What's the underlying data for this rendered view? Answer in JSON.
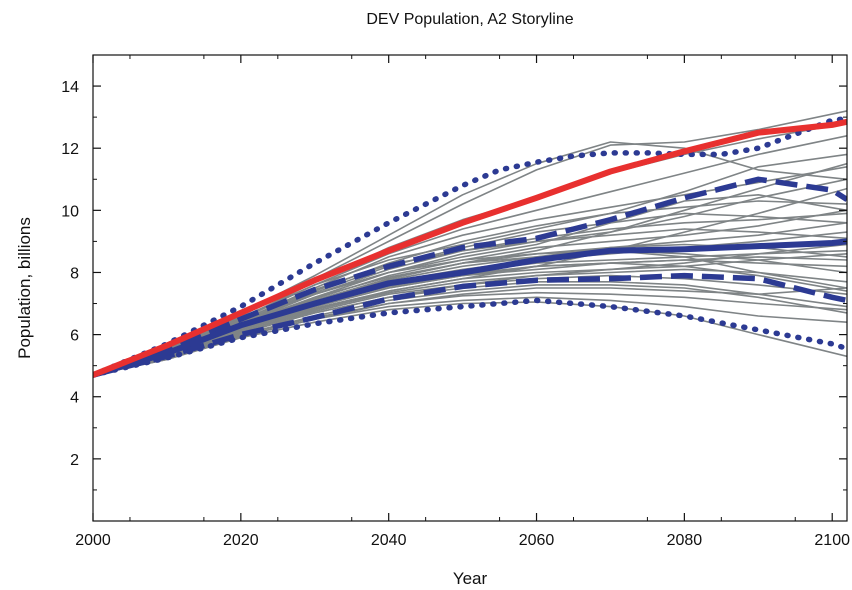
{
  "chart_data": {
    "type": "line",
    "title": "DEV Population, A2 Storyline",
    "xlabel": "Year",
    "ylabel": "Population, billions",
    "xlim": [
      2000,
      2102
    ],
    "ylim": [
      0,
      15
    ],
    "xticks": [
      2000,
      2020,
      2040,
      2060,
      2080,
      2100
    ],
    "yticks": [
      2,
      4,
      6,
      8,
      10,
      12,
      14
    ],
    "grid": false,
    "legend": "none",
    "colors": {
      "ensemble": "#7f8486",
      "marker": "#e8302f",
      "percentile": "#2c3a93"
    },
    "series": [
      {
        "style": "thick-red",
        "color": "#e8302f",
        "x": [
          2000,
          2010,
          2020,
          2030,
          2040,
          2050,
          2060,
          2070,
          2080,
          2090,
          2100,
          2102
        ],
        "y": [
          4.7,
          5.65,
          6.7,
          7.75,
          8.7,
          9.6,
          10.4,
          11.25,
          11.9,
          12.5,
          12.75,
          12.85
        ]
      },
      {
        "style": "dotted-blue",
        "color": "#2c3a93",
        "x": [
          2000,
          2010,
          2020,
          2030,
          2040,
          2050,
          2055,
          2060,
          2065,
          2070,
          2075,
          2080,
          2085,
          2090,
          2095,
          2100,
          2102
        ],
        "y": [
          4.7,
          5.7,
          6.9,
          8.3,
          9.6,
          10.8,
          11.3,
          11.55,
          11.75,
          11.85,
          11.85,
          11.8,
          11.8,
          12.0,
          12.45,
          12.9,
          12.95
        ]
      },
      {
        "style": "dashed-blue",
        "color": "#2c3a93",
        "x": [
          2000,
          2010,
          2020,
          2030,
          2040,
          2050,
          2060,
          2070,
          2080,
          2090,
          2100,
          2102
        ],
        "y": [
          4.7,
          5.5,
          6.5,
          7.45,
          8.2,
          8.8,
          9.1,
          9.7,
          10.4,
          11.0,
          10.65,
          10.35
        ]
      },
      {
        "style": "solid-blue",
        "color": "#2c3a93",
        "x": [
          2000,
          2010,
          2020,
          2030,
          2040,
          2050,
          2060,
          2070,
          2080,
          2090,
          2100,
          2102
        ],
        "y": [
          4.7,
          5.4,
          6.3,
          7.0,
          7.65,
          8.0,
          8.4,
          8.7,
          8.75,
          8.85,
          8.95,
          9.0
        ]
      },
      {
        "style": "dashed-blue",
        "color": "#2c3a93",
        "x": [
          2000,
          2010,
          2020,
          2030,
          2040,
          2050,
          2060,
          2070,
          2080,
          2090,
          2100,
          2102
        ],
        "y": [
          4.7,
          5.3,
          6.0,
          6.55,
          7.15,
          7.55,
          7.75,
          7.8,
          7.9,
          7.8,
          7.2,
          7.1
        ]
      },
      {
        "style": "dotted-blue",
        "color": "#2c3a93",
        "x": [
          2000,
          2010,
          2020,
          2030,
          2040,
          2050,
          2060,
          2070,
          2080,
          2090,
          2100,
          2102
        ],
        "y": [
          4.7,
          5.25,
          5.9,
          6.35,
          6.7,
          6.9,
          7.1,
          6.9,
          6.6,
          6.15,
          5.7,
          5.55
        ]
      }
    ],
    "ensemble": [
      [
        4.7,
        5.6,
        6.7,
        7.9,
        9.2,
        10.5,
        11.5,
        12.2,
        12.0,
        11.3,
        11.0
      ],
      [
        4.7,
        5.55,
        6.6,
        7.8,
        9.0,
        10.2,
        11.3,
        12.1,
        12.2,
        12.6,
        13.2
      ],
      [
        4.7,
        5.5,
        6.5,
        7.7,
        8.8,
        9.7,
        10.4,
        11.2,
        11.8,
        12.3,
        12.8
      ],
      [
        4.7,
        5.5,
        6.5,
        7.6,
        8.6,
        9.4,
        10.0,
        10.6,
        11.2,
        11.8,
        12.4
      ],
      [
        4.7,
        5.45,
        6.45,
        7.5,
        8.5,
        9.2,
        9.7,
        10.1,
        10.5,
        10.9,
        11.4
      ],
      [
        4.7,
        5.45,
        6.4,
        7.4,
        8.3,
        9.0,
        9.5,
        9.9,
        10.1,
        10.3,
        10.2
      ],
      [
        4.7,
        5.45,
        6.4,
        7.35,
        8.2,
        8.8,
        9.3,
        9.6,
        9.9,
        9.8,
        9.6
      ],
      [
        4.7,
        5.4,
        6.35,
        7.3,
        8.1,
        8.7,
        9.1,
        9.4,
        9.6,
        9.7,
        9.9
      ],
      [
        4.7,
        5.4,
        6.35,
        7.2,
        8.0,
        8.6,
        9.0,
        9.2,
        9.4,
        9.3,
        9.1
      ],
      [
        4.7,
        5.4,
        6.3,
        7.15,
        7.9,
        8.4,
        8.8,
        9.0,
        9.2,
        9.5,
        10.0
      ],
      [
        4.7,
        5.4,
        6.3,
        7.1,
        7.8,
        8.3,
        8.6,
        8.8,
        8.9,
        8.8,
        8.5
      ],
      [
        4.7,
        5.35,
        6.25,
        7.05,
        7.75,
        8.2,
        8.5,
        8.7,
        8.6,
        8.4,
        8.0
      ],
      [
        4.7,
        5.35,
        6.25,
        7.0,
        7.7,
        8.1,
        8.4,
        8.6,
        8.8,
        9.0,
        9.3
      ],
      [
        4.7,
        5.35,
        6.2,
        6.95,
        7.6,
        8.0,
        8.3,
        8.4,
        8.5,
        8.6,
        8.7
      ],
      [
        4.7,
        5.35,
        6.2,
        6.9,
        7.5,
        7.9,
        8.2,
        8.3,
        8.4,
        8.3,
        8.2
      ],
      [
        4.7,
        5.3,
        6.15,
        6.85,
        7.4,
        7.8,
        8.0,
        8.1,
        8.2,
        8.4,
        8.6
      ],
      [
        4.7,
        5.3,
        6.1,
        6.8,
        7.35,
        7.7,
        7.9,
        8.0,
        8.1,
        8.0,
        7.7
      ],
      [
        4.7,
        5.3,
        6.1,
        6.75,
        7.3,
        7.6,
        7.8,
        7.9,
        7.8,
        7.6,
        7.3
      ],
      [
        4.7,
        5.3,
        6.05,
        6.7,
        7.2,
        7.5,
        7.7,
        7.7,
        7.6,
        7.3,
        6.9
      ],
      [
        4.7,
        5.25,
        6.0,
        6.6,
        7.1,
        7.4,
        7.6,
        7.6,
        7.5,
        7.2,
        6.7
      ],
      [
        4.7,
        5.25,
        6.0,
        6.55,
        7.0,
        7.25,
        7.35,
        7.3,
        7.2,
        7.0,
        6.8
      ],
      [
        4.7,
        5.25,
        5.95,
        6.5,
        6.9,
        7.1,
        7.2,
        7.1,
        6.9,
        6.6,
        6.4
      ],
      [
        4.7,
        5.2,
        5.9,
        6.4,
        6.8,
        7.0,
        7.05,
        6.9,
        6.6,
        6.0,
        5.3
      ],
      [
        4.7,
        5.5,
        6.55,
        7.6,
        8.4,
        8.9,
        9.4,
        9.9,
        10.6,
        11.4,
        11.8
      ],
      [
        4.7,
        5.45,
        6.45,
        7.45,
        8.25,
        8.7,
        9.0,
        9.3,
        9.8,
        10.4,
        11.0
      ],
      [
        4.7,
        5.4,
        6.35,
        7.3,
        8.0,
        8.5,
        8.9,
        9.6,
        10.3,
        10.5,
        10.0
      ],
      [
        4.7,
        5.35,
        6.25,
        7.1,
        7.8,
        8.3,
        8.7,
        9.3,
        10.0,
        10.7,
        11.5
      ],
      [
        4.7,
        5.3,
        6.1,
        6.8,
        7.4,
        7.8,
        8.2,
        8.7,
        9.3,
        9.9,
        10.7
      ],
      [
        4.7,
        5.3,
        6.15,
        6.9,
        7.5,
        7.9,
        8.1,
        8.3,
        8.4,
        8.5,
        8.4
      ],
      [
        4.7,
        5.25,
        6.05,
        6.7,
        7.2,
        7.6,
        7.9,
        8.1,
        8.3,
        8.6,
        8.9
      ],
      [
        4.7,
        5.4,
        6.4,
        7.3,
        8.0,
        8.4,
        8.6,
        8.7,
        8.5,
        8.0,
        7.5
      ],
      [
        4.7,
        5.35,
        6.3,
        7.2,
        7.85,
        8.3,
        8.5,
        8.8,
        9.0,
        9.2,
        9.6
      ],
      [
        4.7,
        5.3,
        6.2,
        6.95,
        7.55,
        7.95,
        8.2,
        8.3,
        8.2,
        7.9,
        7.4
      ],
      [
        4.7,
        5.2,
        5.95,
        6.5,
        7.0,
        7.3,
        7.5,
        7.5,
        7.4,
        7.3,
        7.5
      ]
    ]
  }
}
